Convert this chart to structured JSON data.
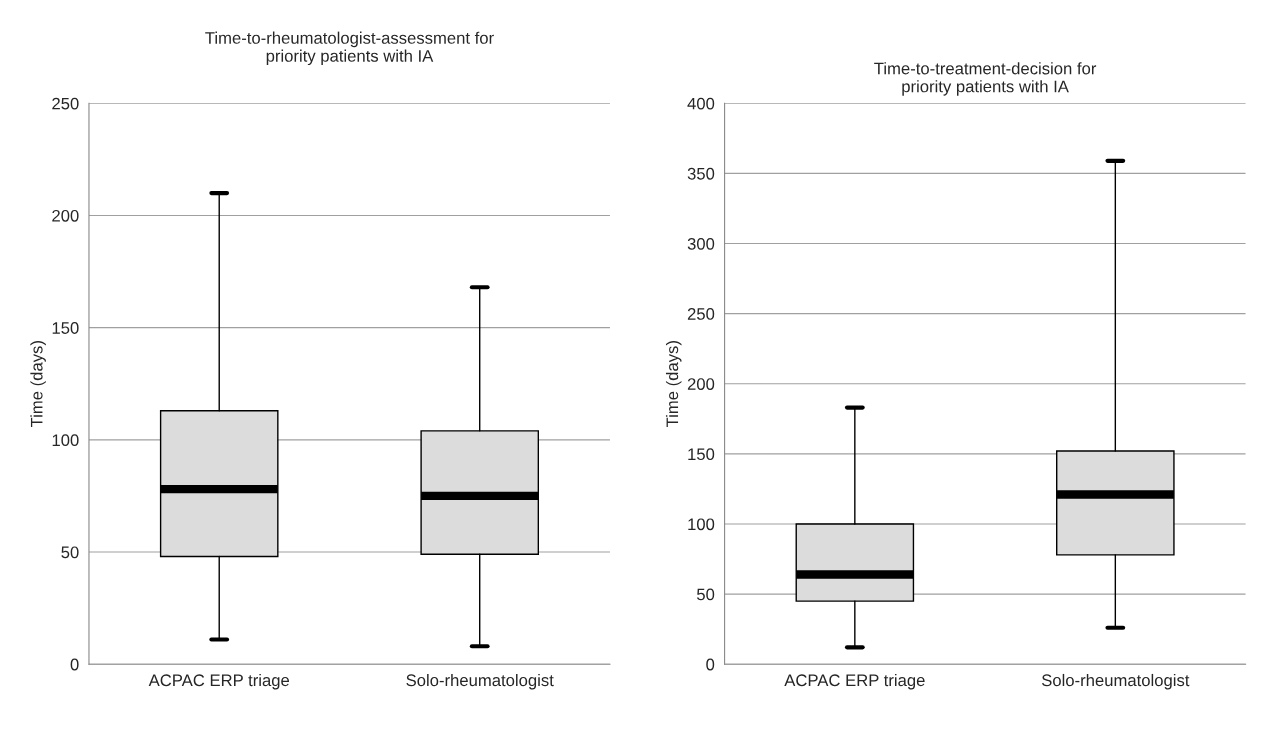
{
  "chart_data": [
    {
      "type": "box",
      "title": "Time-to-rheumatologist-assessment for\npriority patients with IA",
      "ylabel": "Time (days)",
      "categories": [
        "ACPAC ERP triage",
        "Solo-rheumatologist"
      ],
      "color": "#dcdcdc",
      "boxes": [
        {
          "low": 11,
          "q1": 48,
          "median": 78,
          "q3": 113,
          "high": 210
        },
        {
          "low": 8,
          "q1": 49,
          "median": 75,
          "q3": 104,
          "high": 168
        }
      ],
      "ylim": [
        0,
        250
      ],
      "yticks": [
        0,
        50,
        100,
        150,
        200,
        250
      ],
      "grid": "y",
      "legend": false
    },
    {
      "type": "box",
      "title": "Time-to-treatment-decision for\npriority patients with IA",
      "ylabel": "Time (days)",
      "categories": [
        "ACPAC ERP triage",
        "Solo-rheumatologist"
      ],
      "color": "#dcdcdc",
      "boxes": [
        {
          "low": 12,
          "q1": 45,
          "median": 64,
          "q3": 100,
          "high": 183
        },
        {
          "low": 26,
          "q1": 78,
          "median": 121,
          "q3": 152,
          "high": 359
        }
      ],
      "ylim": [
        0,
        400
      ],
      "yticks": [
        0,
        50,
        100,
        150,
        200,
        250,
        300,
        350,
        400
      ],
      "grid": "y",
      "legend": false
    }
  ]
}
